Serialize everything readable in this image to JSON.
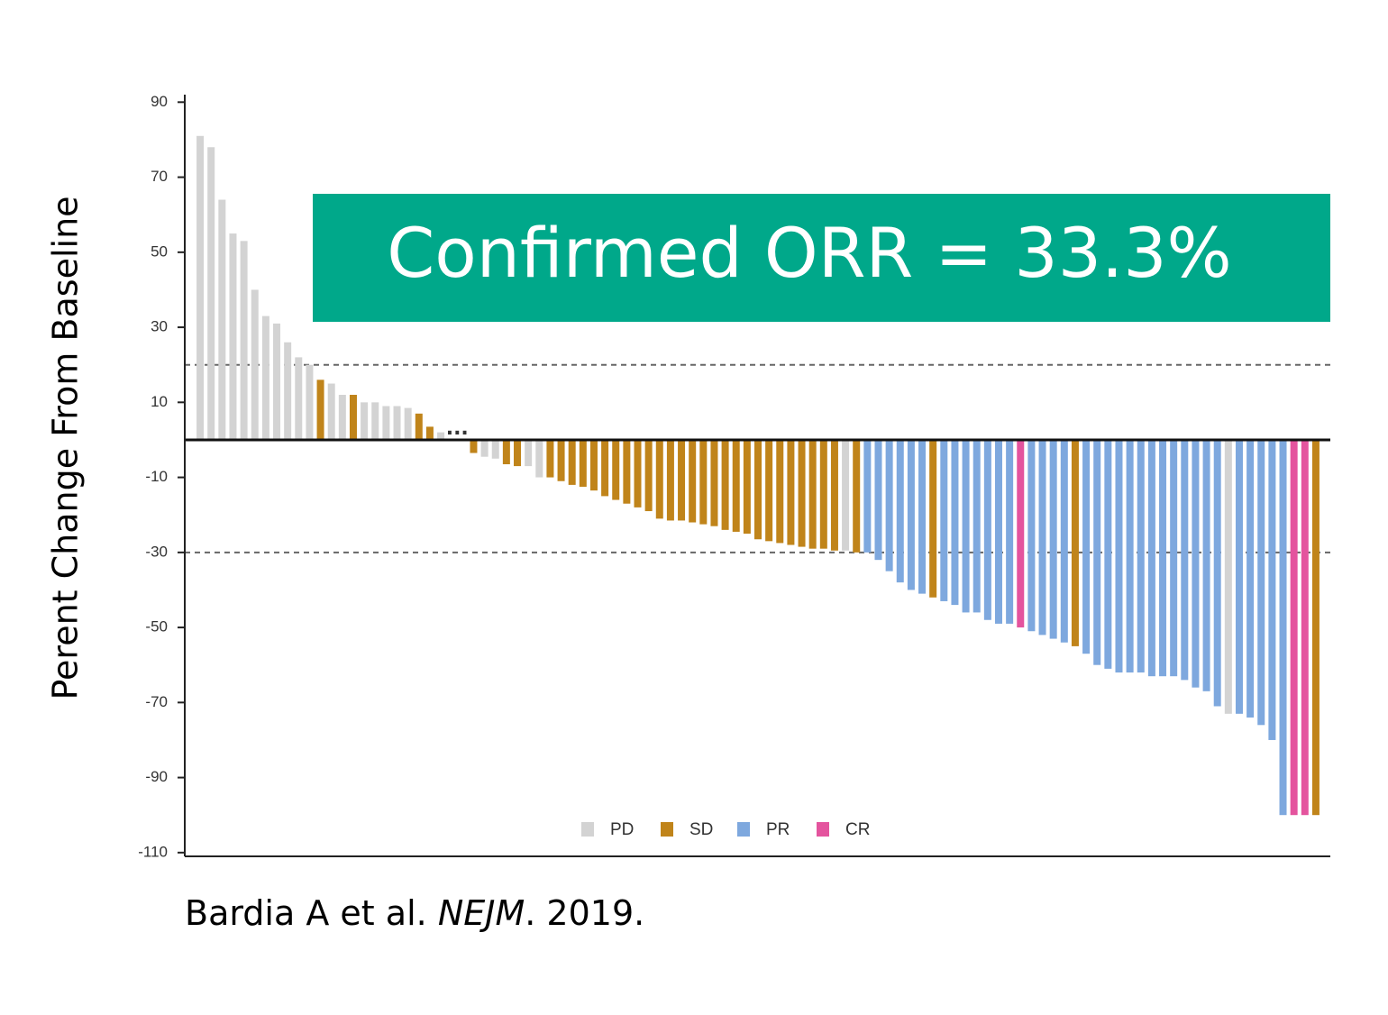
{
  "chart_data": {
    "type": "bar",
    "banner": "Confirmed ORR = 33.3%",
    "y_label": "Perent Change From Baseline",
    "annotation": "...",
    "citation": {
      "authors": "Bardia A et al.",
      "journal": "NEJM",
      "year": ". 2019."
    },
    "ylim": [
      -111,
      92
    ],
    "yticks": [
      90,
      70,
      50,
      30,
      10,
      -10,
      -30,
      -50,
      -70,
      -90,
      -110
    ],
    "reference_lines": [
      20,
      -30
    ],
    "series": [
      {
        "name": "PD",
        "color": "#d3d3d3"
      },
      {
        "name": "SD",
        "color": "#c0841a"
      },
      {
        "name": "PR",
        "color": "#7ea8de"
      },
      {
        "name": "CR",
        "color": "#e4549e"
      }
    ],
    "values": [
      81,
      78,
      64,
      55,
      53,
      40,
      33,
      31,
      26,
      22,
      20,
      16,
      15,
      12,
      12,
      10,
      10,
      9,
      9,
      8.5,
      7,
      3.5,
      2,
      -3.5,
      -4.5,
      -5,
      -6.5,
      -7,
      -7,
      -10,
      -10,
      -11,
      -12,
      -12.5,
      -13.5,
      -15,
      -16,
      -17,
      -18,
      -19,
      -21,
      -21.5,
      -21.5,
      -22,
      -22.5,
      -23,
      -24,
      -24.5,
      -25,
      -26.5,
      -27,
      -27.5,
      -28,
      -28.5,
      -29,
      -29,
      -29.5,
      -29.5,
      -30,
      -30,
      -32,
      -35,
      -38,
      -40,
      -41,
      -42,
      -43,
      -44,
      -46,
      -46,
      -48,
      -49,
      -49,
      -50,
      -51,
      -52,
      -53,
      -54,
      -55,
      -57,
      -60,
      -61,
      -62,
      -62,
      -62,
      -63,
      -63,
      -63,
      -64,
      -66,
      -67,
      -71,
      -73,
      -73,
      -74,
      -76,
      -80,
      -100,
      -100,
      -100,
      -100
    ],
    "response": [
      "PD",
      "PD",
      "PD",
      "PD",
      "PD",
      "PD",
      "PD",
      "PD",
      "PD",
      "PD",
      "PD",
      "SD",
      "PD",
      "PD",
      "SD",
      "PD",
      "PD",
      "PD",
      "PD",
      "PD",
      "SD",
      "SD",
      "PD",
      "SD",
      "PD",
      "PD",
      "SD",
      "SD",
      "PD",
      "PD",
      "SD",
      "SD",
      "SD",
      "SD",
      "SD",
      "SD",
      "SD",
      "SD",
      "SD",
      "SD",
      "SD",
      "SD",
      "SD",
      "SD",
      "SD",
      "SD",
      "SD",
      "SD",
      "SD",
      "SD",
      "SD",
      "SD",
      "SD",
      "SD",
      "SD",
      "SD",
      "SD",
      "PD",
      "SD",
      "PR",
      "PR",
      "PR",
      "PR",
      "PR",
      "PR",
      "SD",
      "PR",
      "PR",
      "PR",
      "PR",
      "PR",
      "PR",
      "PR",
      "CR",
      "PR",
      "PR",
      "PR",
      "PR",
      "SD",
      "PR",
      "PR",
      "PR",
      "PR",
      "PR",
      "PR",
      "PR",
      "PR",
      "PR",
      "PR",
      "PR",
      "PR",
      "PR",
      "PD",
      "PR",
      "PR",
      "PR",
      "PR",
      "PR",
      "CR",
      "CR",
      "SD"
    ]
  }
}
